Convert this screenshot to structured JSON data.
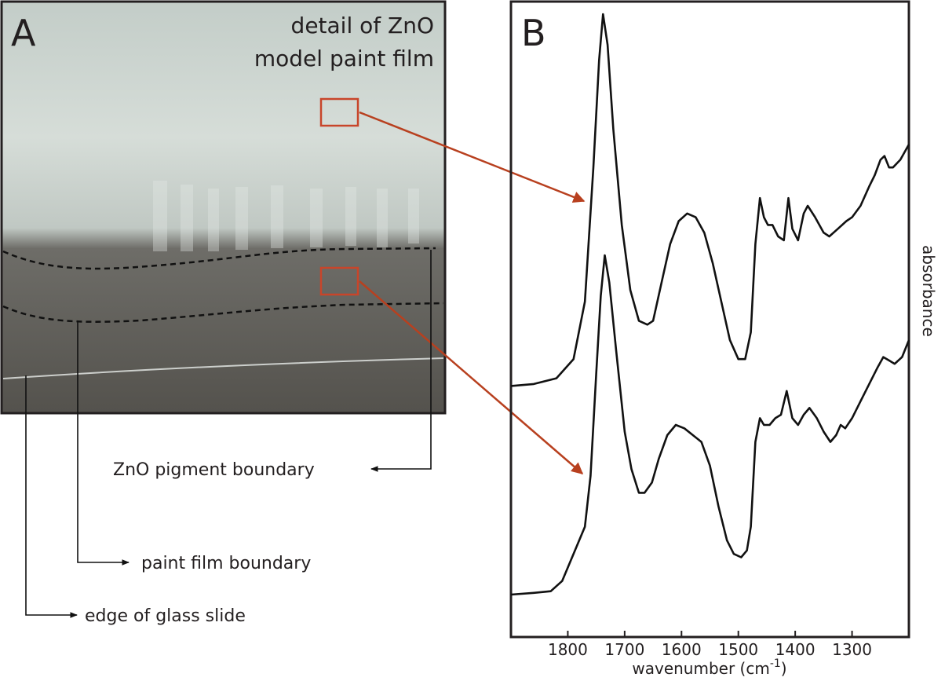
{
  "panel_a": {
    "letter": "A",
    "caption_line1": "detail of ZnO",
    "caption_line2": "model paint film",
    "labels": {
      "zno_boundary": "ZnO pigment boundary",
      "paint_boundary": "paint film boundary",
      "glass_edge": "edge of glass slide"
    },
    "colors": {
      "highlight_box": "#c8452a",
      "arrow": "#b8401f",
      "boundary_line": "#111111"
    }
  },
  "panel_b": {
    "letter": "B"
  },
  "chart_data": {
    "type": "line",
    "xlabel": "wavenumber (cm",
    "xlabel_sup": "-1",
    "xlabel_close": ")",
    "ylabel": "absorbance",
    "xlim": [
      1900,
      1200
    ],
    "x_ticks": [
      1800,
      1700,
      1600,
      1500,
      1400,
      1300
    ],
    "series": [
      {
        "position": "upper",
        "points": [
          [
            1900,
            0.03
          ],
          [
            1860,
            0.035
          ],
          [
            1820,
            0.05
          ],
          [
            1790,
            0.1
          ],
          [
            1770,
            0.25
          ],
          [
            1755,
            0.6
          ],
          [
            1745,
            0.88
          ],
          [
            1738,
            1.0
          ],
          [
            1730,
            0.92
          ],
          [
            1720,
            0.7
          ],
          [
            1705,
            0.45
          ],
          [
            1690,
            0.28
          ],
          [
            1675,
            0.2
          ],
          [
            1660,
            0.19
          ],
          [
            1650,
            0.2
          ],
          [
            1635,
            0.3
          ],
          [
            1620,
            0.4
          ],
          [
            1605,
            0.46
          ],
          [
            1590,
            0.48
          ],
          [
            1575,
            0.47
          ],
          [
            1560,
            0.43
          ],
          [
            1545,
            0.35
          ],
          [
            1530,
            0.25
          ],
          [
            1515,
            0.15
          ],
          [
            1500,
            0.1
          ],
          [
            1488,
            0.1
          ],
          [
            1478,
            0.17
          ],
          [
            1470,
            0.4
          ],
          [
            1462,
            0.52
          ],
          [
            1455,
            0.47
          ],
          [
            1448,
            0.45
          ],
          [
            1440,
            0.45
          ],
          [
            1430,
            0.42
          ],
          [
            1420,
            0.41
          ],
          [
            1412,
            0.52
          ],
          [
            1405,
            0.44
          ],
          [
            1395,
            0.41
          ],
          [
            1385,
            0.48
          ],
          [
            1378,
            0.5
          ],
          [
            1365,
            0.47
          ],
          [
            1350,
            0.43
          ],
          [
            1340,
            0.42
          ],
          [
            1325,
            0.44
          ],
          [
            1310,
            0.46
          ],
          [
            1300,
            0.47
          ],
          [
            1285,
            0.5
          ],
          [
            1270,
            0.55
          ],
          [
            1260,
            0.58
          ],
          [
            1250,
            0.62
          ],
          [
            1243,
            0.63
          ],
          [
            1235,
            0.6
          ],
          [
            1228,
            0.6
          ],
          [
            1215,
            0.62
          ],
          [
            1200,
            0.66
          ]
        ]
      },
      {
        "position": "lower",
        "points": [
          [
            1900,
            0.0
          ],
          [
            1860,
            0.005
          ],
          [
            1830,
            0.01
          ],
          [
            1810,
            0.04
          ],
          [
            1790,
            0.12
          ],
          [
            1770,
            0.2
          ],
          [
            1760,
            0.35
          ],
          [
            1750,
            0.65
          ],
          [
            1742,
            0.88
          ],
          [
            1735,
            1.0
          ],
          [
            1727,
            0.92
          ],
          [
            1715,
            0.72
          ],
          [
            1700,
            0.48
          ],
          [
            1688,
            0.37
          ],
          [
            1675,
            0.3
          ],
          [
            1665,
            0.3
          ],
          [
            1652,
            0.33
          ],
          [
            1640,
            0.4
          ],
          [
            1625,
            0.47
          ],
          [
            1610,
            0.5
          ],
          [
            1595,
            0.49
          ],
          [
            1580,
            0.47
          ],
          [
            1565,
            0.45
          ],
          [
            1550,
            0.38
          ],
          [
            1535,
            0.26
          ],
          [
            1520,
            0.16
          ],
          [
            1508,
            0.12
          ],
          [
            1495,
            0.11
          ],
          [
            1485,
            0.13
          ],
          [
            1478,
            0.2
          ],
          [
            1470,
            0.45
          ],
          [
            1462,
            0.52
          ],
          [
            1455,
            0.5
          ],
          [
            1445,
            0.5
          ],
          [
            1435,
            0.52
          ],
          [
            1425,
            0.53
          ],
          [
            1415,
            0.6
          ],
          [
            1405,
            0.52
          ],
          [
            1395,
            0.5
          ],
          [
            1385,
            0.53
          ],
          [
            1375,
            0.55
          ],
          [
            1362,
            0.52
          ],
          [
            1350,
            0.48
          ],
          [
            1338,
            0.45
          ],
          [
            1328,
            0.47
          ],
          [
            1320,
            0.5
          ],
          [
            1312,
            0.49
          ],
          [
            1300,
            0.52
          ],
          [
            1285,
            0.57
          ],
          [
            1270,
            0.62
          ],
          [
            1255,
            0.67
          ],
          [
            1245,
            0.7
          ],
          [
            1235,
            0.69
          ],
          [
            1225,
            0.68
          ],
          [
            1212,
            0.7
          ],
          [
            1200,
            0.75
          ]
        ]
      }
    ]
  }
}
